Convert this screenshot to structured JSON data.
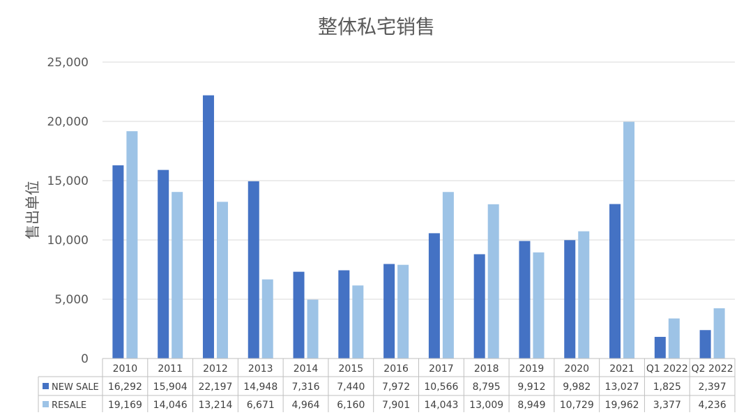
{
  "chart_data": {
    "type": "bar",
    "title": "整体私宅销售",
    "ylabel": "售出单位",
    "xlabel": "",
    "ylim": [
      0,
      25000
    ],
    "yticks": [
      0,
      5000,
      10000,
      15000,
      20000,
      25000
    ],
    "ytick_labels": [
      "0",
      "5,000",
      "10,000",
      "15,000",
      "20,000",
      "25,000"
    ],
    "grid": true,
    "legend": "data-table-left",
    "categories": [
      "2010",
      "2011",
      "2012",
      "2013",
      "2014",
      "2015",
      "2016",
      "2017",
      "2018",
      "2019",
      "2020",
      "2021",
      "Q1 2022",
      "Q2 2022"
    ],
    "series": [
      {
        "name": "NEW SALE",
        "color": "#4472C4",
        "values": [
          16292,
          15904,
          22197,
          14948,
          7316,
          7440,
          7972,
          10566,
          8795,
          9912,
          9982,
          13027,
          1825,
          2397
        ],
        "labels": [
          "16,292",
          "15,904",
          "22,197",
          "14,948",
          "7,316",
          "7,440",
          "7,972",
          "10,566",
          "8,795",
          "9,912",
          "9,982",
          "13,027",
          "1,825",
          "2,397"
        ]
      },
      {
        "name": "RESALE",
        "color": "#9DC3E6",
        "values": [
          19169,
          14046,
          13214,
          6671,
          4964,
          6160,
          7901,
          14043,
          13009,
          8949,
          10729,
          19962,
          3377,
          4236
        ],
        "labels": [
          "19,169",
          "14,046",
          "13,214",
          "6,671",
          "4,964",
          "6,160",
          "7,901",
          "14,043",
          "13,009",
          "8,949",
          "10,729",
          "19,962",
          "3,377",
          "4,236"
        ]
      }
    ]
  }
}
